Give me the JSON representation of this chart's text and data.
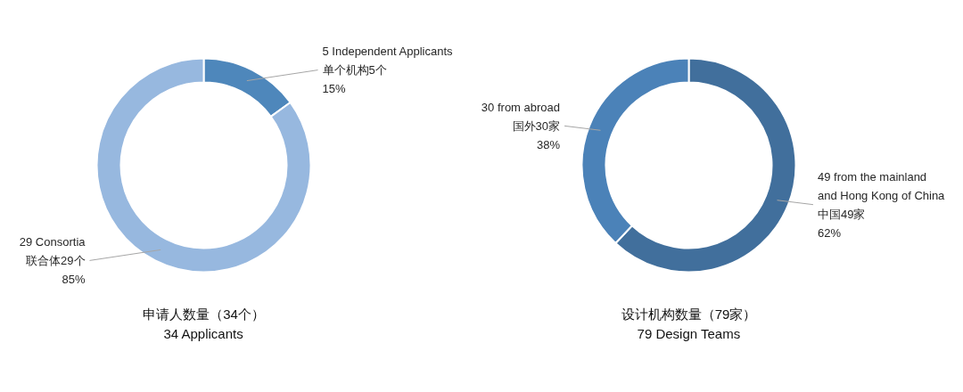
{
  "chart_data": [
    {
      "type": "donut",
      "title": "申请人数量（34个）",
      "subtitle": "34 Applicants",
      "categories": [
        "5 Independent Applicants\n单个机构5个",
        "29 Consortia\n联合体29个"
      ],
      "values": [
        15,
        85
      ],
      "colors": [
        "#4e87bb",
        "#97b8df"
      ],
      "value_labels": [
        "15%",
        "85%"
      ]
    },
    {
      "type": "donut",
      "title": "设计机构数量（79家）",
      "subtitle": "79 Design Teams",
      "categories": [
        "49 from the mainland\nand Hong Kong of China\n中国49家",
        "30 from abroad\n国外30家"
      ],
      "values": [
        62,
        38
      ],
      "colors": [
        "#416f9c",
        "#4b82b8"
      ],
      "value_labels": [
        "62%",
        "38%"
      ]
    }
  ]
}
